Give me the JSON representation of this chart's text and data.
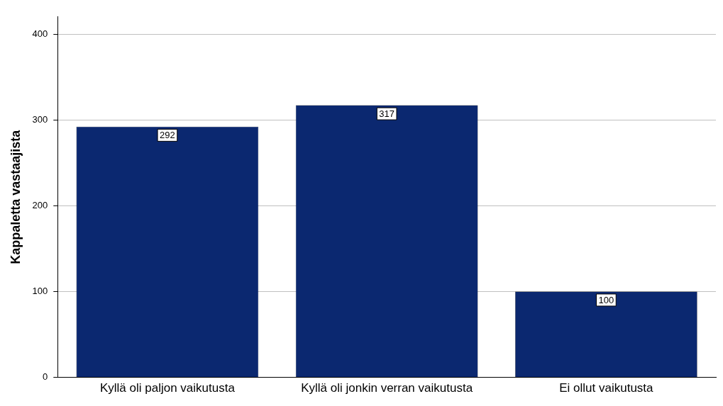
{
  "chart_data": {
    "type": "bar",
    "ylabel": "Kappaletta vastaajista",
    "categories": [
      "Kyllä oli paljon vaikutusta",
      "Kyllä oli jonkin verran vaikutusta",
      "Ei ollut vaikutusta"
    ],
    "values": [
      292,
      317,
      100
    ],
    "color": "#0b2870",
    "ylim": [
      0,
      420
    ],
    "yticks": [
      0,
      100,
      200,
      300,
      400
    ],
    "grid": "y",
    "legend": false,
    "data_labels": true
  }
}
